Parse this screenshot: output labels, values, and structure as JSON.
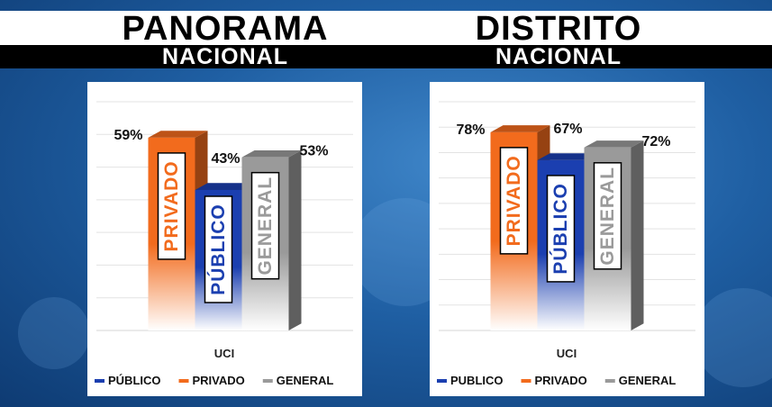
{
  "headlines": {
    "left": {
      "title": "PANORAMA",
      "subtitle": "NACIONAL"
    },
    "right": {
      "title": "DISTRITO",
      "subtitle": "NACIONAL"
    }
  },
  "colors": {
    "privado": "#f26b1d",
    "publico": "#1b3fb0",
    "general": "#9a9a9a",
    "header_black": "#000000",
    "background_blue": "#1f5fa3"
  },
  "chart_data": [
    {
      "type": "bar",
      "categories": [
        "UCI"
      ],
      "series": [
        {
          "name": "PRIVADO",
          "values": [
            59
          ],
          "label": "59%",
          "bar_text": "PRIVADO"
        },
        {
          "name": "PÚBLICO",
          "values": [
            43
          ],
          "label": "43%",
          "bar_text": "PÚBLICO"
        },
        {
          "name": "GENERAL",
          "values": [
            53
          ],
          "label": "53%",
          "bar_text": "GENERAL"
        }
      ],
      "legend": [
        "PÚBLICO",
        "PRIVADO",
        "GENERAL"
      ],
      "legend_position": "bottom",
      "xlabel": "UCI",
      "ylim": [
        0,
        70
      ],
      "grid": true
    },
    {
      "type": "bar",
      "categories": [
        "UCI"
      ],
      "series": [
        {
          "name": "PRIVADO",
          "values": [
            78
          ],
          "label": "78%",
          "bar_text": "PRIVADO"
        },
        {
          "name": "PÚBLICO",
          "values": [
            67
          ],
          "label": "67%",
          "bar_text": "PÚBLICO"
        },
        {
          "name": "GENERAL",
          "values": [
            72
          ],
          "label": "72%",
          "bar_text": "GENERAL"
        }
      ],
      "legend": [
        "PUBLICO",
        "PRIVADO",
        "GENERAL"
      ],
      "legend_position": "bottom",
      "xlabel": "UCI",
      "ylim": [
        0,
        90
      ],
      "grid": true
    }
  ]
}
